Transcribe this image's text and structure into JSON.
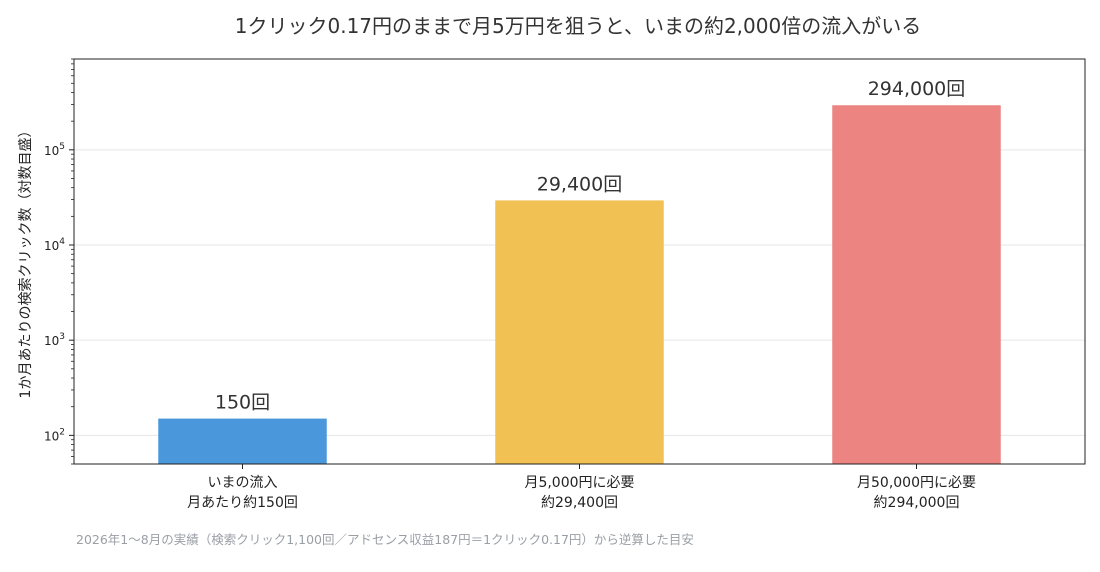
{
  "chart_data": {
    "type": "bar",
    "title": "1クリック0.17円のままで月5万円を狙うと、いまの約2,000倍の流入がいる",
    "ylabel": "1か月あたりの検索クリック数（対数目盛）",
    "yscale": "log",
    "ylim": [
      50,
      900000
    ],
    "grid": "y",
    "categories": [
      [
        "いまの流入",
        "月あたり約150回"
      ],
      [
        "月5,000円に必要",
        "約29,400回"
      ],
      [
        "月50,000円に必要",
        "約294,000回"
      ]
    ],
    "values": [
      150,
      29400,
      294000
    ],
    "value_labels": [
      "150回",
      "29,400回",
      "294,000回"
    ],
    "colors": [
      "#4a98db",
      "#f2c153",
      "#ec8481"
    ],
    "yticks": [
      {
        "value": 100,
        "base": "10",
        "exp": "2"
      },
      {
        "value": 1000,
        "base": "10",
        "exp": "3"
      },
      {
        "value": 10000,
        "base": "10",
        "exp": "4"
      },
      {
        "value": 100000,
        "base": "10",
        "exp": "5"
      }
    ],
    "footnote": "2026年1〜8月の実績（検索クリック1,100回／アドセンス収益187円＝1クリック0.17円）から逆算した目安"
  }
}
